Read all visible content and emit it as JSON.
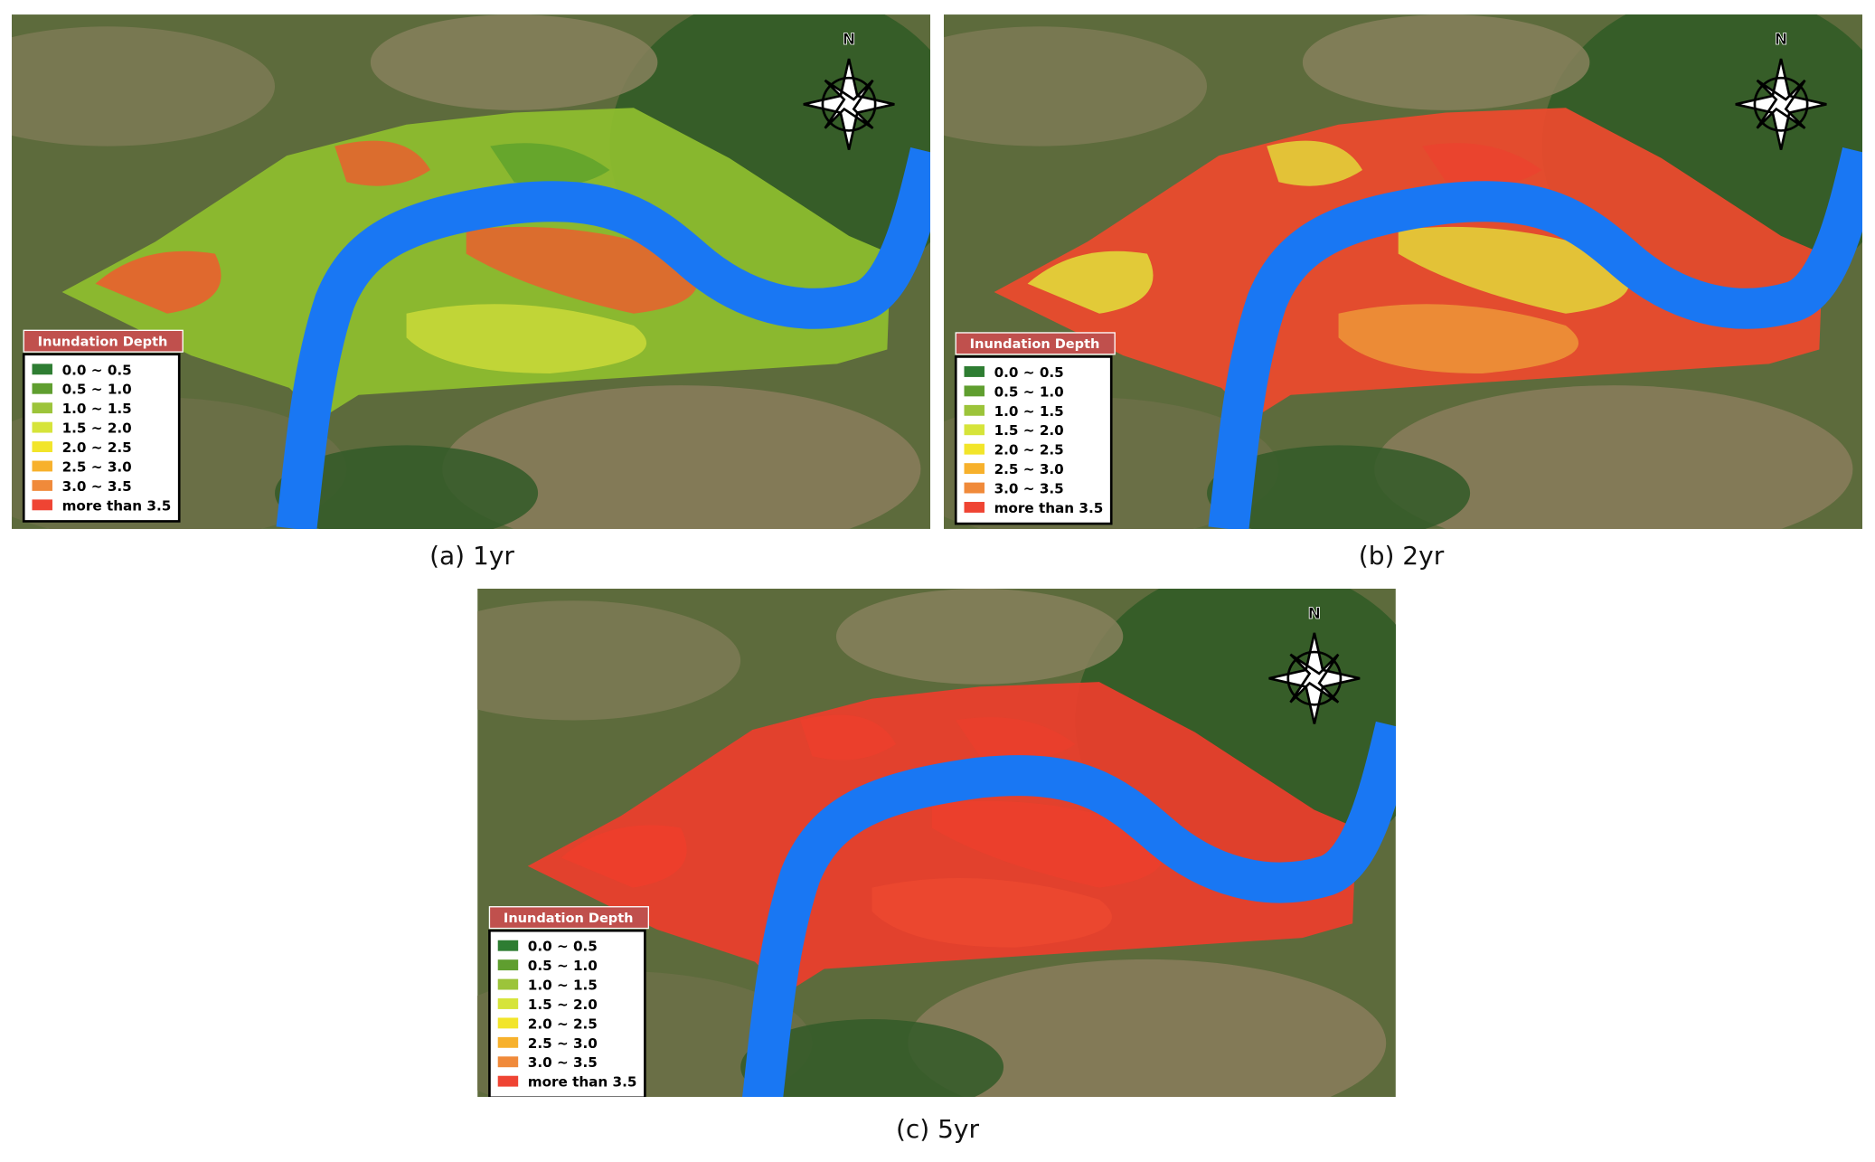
{
  "compass": "N",
  "legend": {
    "title": "Inundation Depth",
    "items": [
      {
        "label": "0.0 ~ 0.5",
        "color": "#2e7d32"
      },
      {
        "label": "0.5 ~ 1.0",
        "color": "#5f9e2f"
      },
      {
        "label": "1.0 ~ 1.5",
        "color": "#9cc43a"
      },
      {
        "label": "1.5 ~ 2.0",
        "color": "#d6e43a"
      },
      {
        "label": "2.0 ~ 2.5",
        "color": "#f2e52a"
      },
      {
        "label": "2.5 ~ 3.0",
        "color": "#f7b12c"
      },
      {
        "label": "3.0 ~ 3.5",
        "color": "#f08a3a"
      },
      {
        "label": "more than 3.5",
        "color": "#ef4433"
      }
    ]
  },
  "panels": [
    {
      "caption": "(a) 1yr"
    },
    {
      "caption": "(b) 2yr"
    },
    {
      "caption": "(c) 5yr"
    }
  ]
}
